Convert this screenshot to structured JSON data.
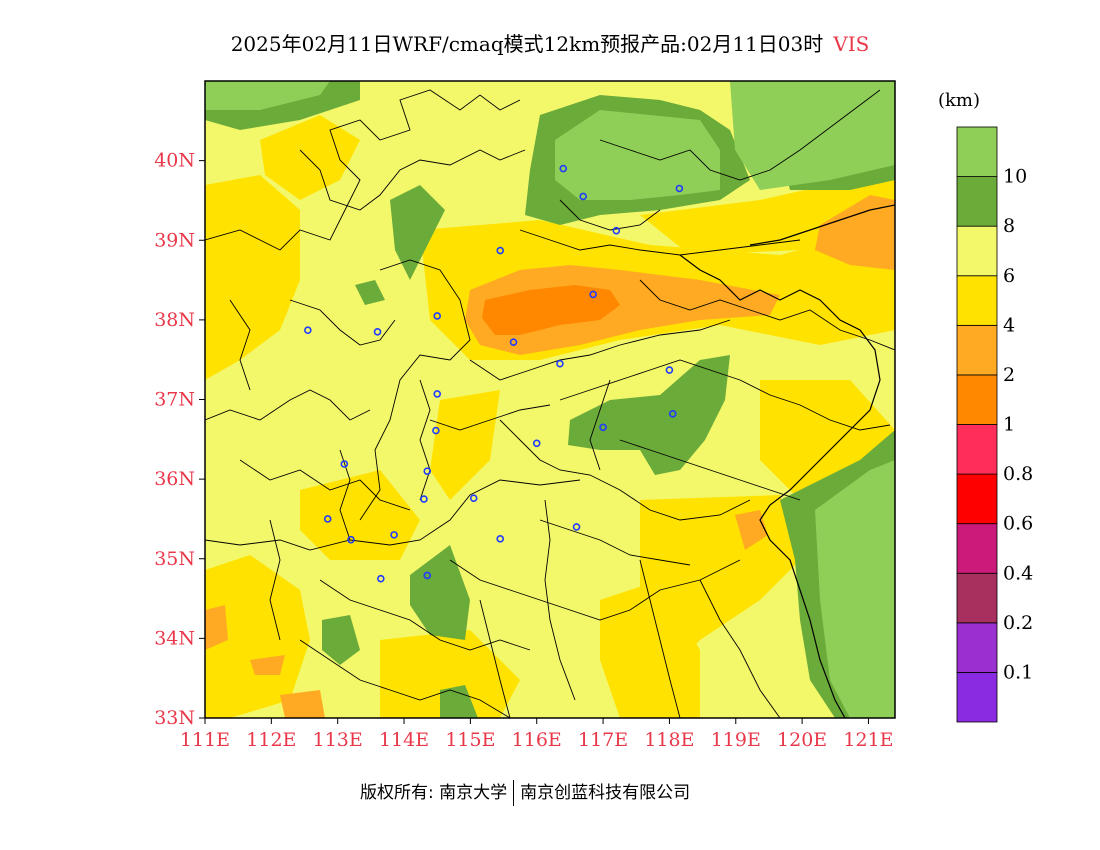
{
  "title": {
    "text": "2025年02月11日WRF/cmaq模式12km预报产品:02月11日03时",
    "variable": "VIS"
  },
  "colorbar": {
    "unit": "(km)",
    "bins": [
      {
        "color": "#8a2be2",
        "label": ""
      },
      {
        "color": "#9b30d0",
        "label": "0.1"
      },
      {
        "color": "#a8305e",
        "label": "0.2"
      },
      {
        "color": "#cc1a7a",
        "label": "0.4"
      },
      {
        "color": "#ff0000",
        "label": "0.6"
      },
      {
        "color": "#ff2d5a",
        "label": "0.8"
      },
      {
        "color": "#ff8800",
        "label": "1"
      },
      {
        "color": "#ffaa22",
        "label": "2"
      },
      {
        "color": "#ffe200",
        "label": "4"
      },
      {
        "color": "#f3f76a",
        "label": "6"
      },
      {
        "color": "#6aab3a",
        "label": "8"
      },
      {
        "color": "#8fcf58",
        "label": "10"
      }
    ]
  },
  "axes": {
    "x_ticks": [
      "111E",
      "112E",
      "113E",
      "114E",
      "115E",
      "116E",
      "117E",
      "118E",
      "119E",
      "120E",
      "121E"
    ],
    "y_ticks": [
      "33N",
      "34N",
      "35N",
      "36N",
      "37N",
      "38N",
      "39N",
      "40N"
    ],
    "tick_color": "#e8384a"
  },
  "chart_data": {
    "type": "heatmap",
    "variable": "VIS",
    "unit": "km",
    "xlim": [
      111,
      121.4
    ],
    "ylim": [
      33,
      41
    ],
    "levels": [
      0.1,
      0.2,
      0.4,
      0.6,
      0.8,
      1,
      2,
      4,
      6,
      8,
      10
    ],
    "stations": [
      [
        116.4,
        39.9
      ],
      [
        116.7,
        39.55
      ],
      [
        118.15,
        39.65
      ],
      [
        117.2,
        39.12
      ],
      [
        115.45,
        38.87
      ],
      [
        116.85,
        38.32
      ],
      [
        114.5,
        38.05
      ],
      [
        112.55,
        37.87
      ],
      [
        113.6,
        37.85
      ],
      [
        115.65,
        37.72
      ],
      [
        116.35,
        37.45
      ],
      [
        118.0,
        37.37
      ],
      [
        114.5,
        37.07
      ],
      [
        118.05,
        36.82
      ],
      [
        117.0,
        36.65
      ],
      [
        114.48,
        36.61
      ],
      [
        116.0,
        36.45
      ],
      [
        113.1,
        36.19
      ],
      [
        114.35,
        36.1
      ],
      [
        115.05,
        35.76
      ],
      [
        114.3,
        35.75
      ],
      [
        112.85,
        35.5
      ],
      [
        116.6,
        35.4
      ],
      [
        113.85,
        35.3
      ],
      [
        113.2,
        35.24
      ],
      [
        115.45,
        35.25
      ],
      [
        114.35,
        34.79
      ],
      [
        113.65,
        34.75
      ]
    ]
  },
  "footer": {
    "copyright": "版权所有: 南京大学",
    "company": "南京创蓝科技有限公司"
  }
}
